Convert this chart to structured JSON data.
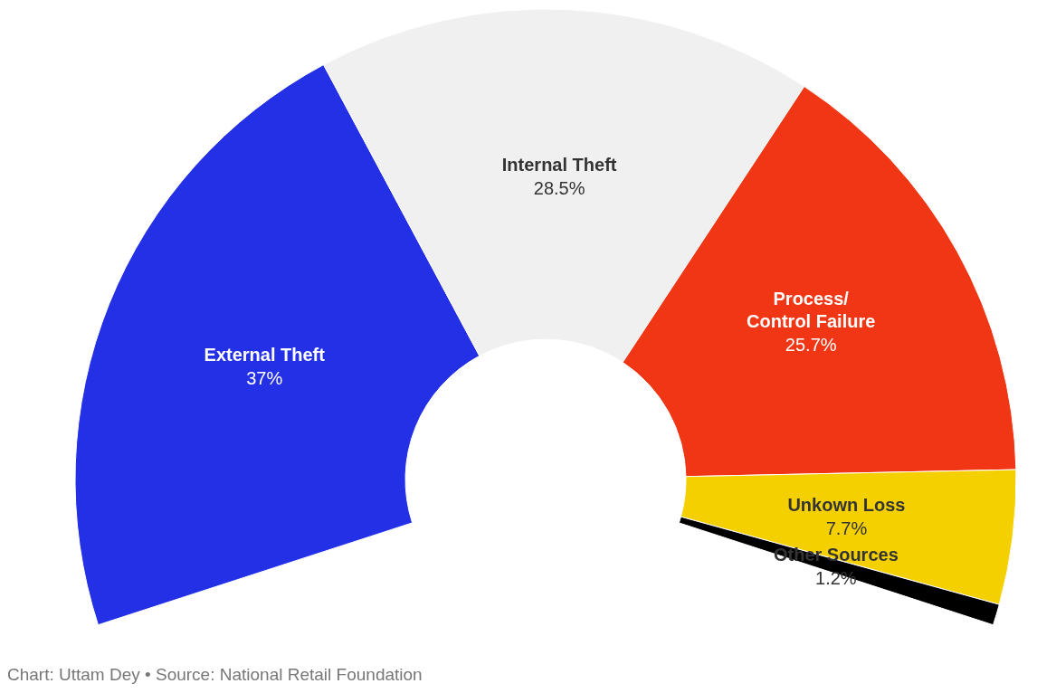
{
  "chart_data": {
    "type": "donut",
    "categories": [
      "External Theft",
      "Internal Theft",
      "Process/Control Failure",
      "Unkown Loss",
      "Other Sources"
    ],
    "values": [
      37,
      28.5,
      25.7,
      7.7,
      1.2
    ],
    "colors": [
      "#2330e6",
      "#f0f0f0",
      "#f03615",
      "#f5d000",
      "#000000"
    ],
    "value_labels": [
      "37%",
      "28.5%",
      "25.7%",
      "7.7%",
      "1.2%"
    ],
    "annotations": [
      "Chart: Uttam Dey • Source: National Retail Foundation"
    ]
  }
}
